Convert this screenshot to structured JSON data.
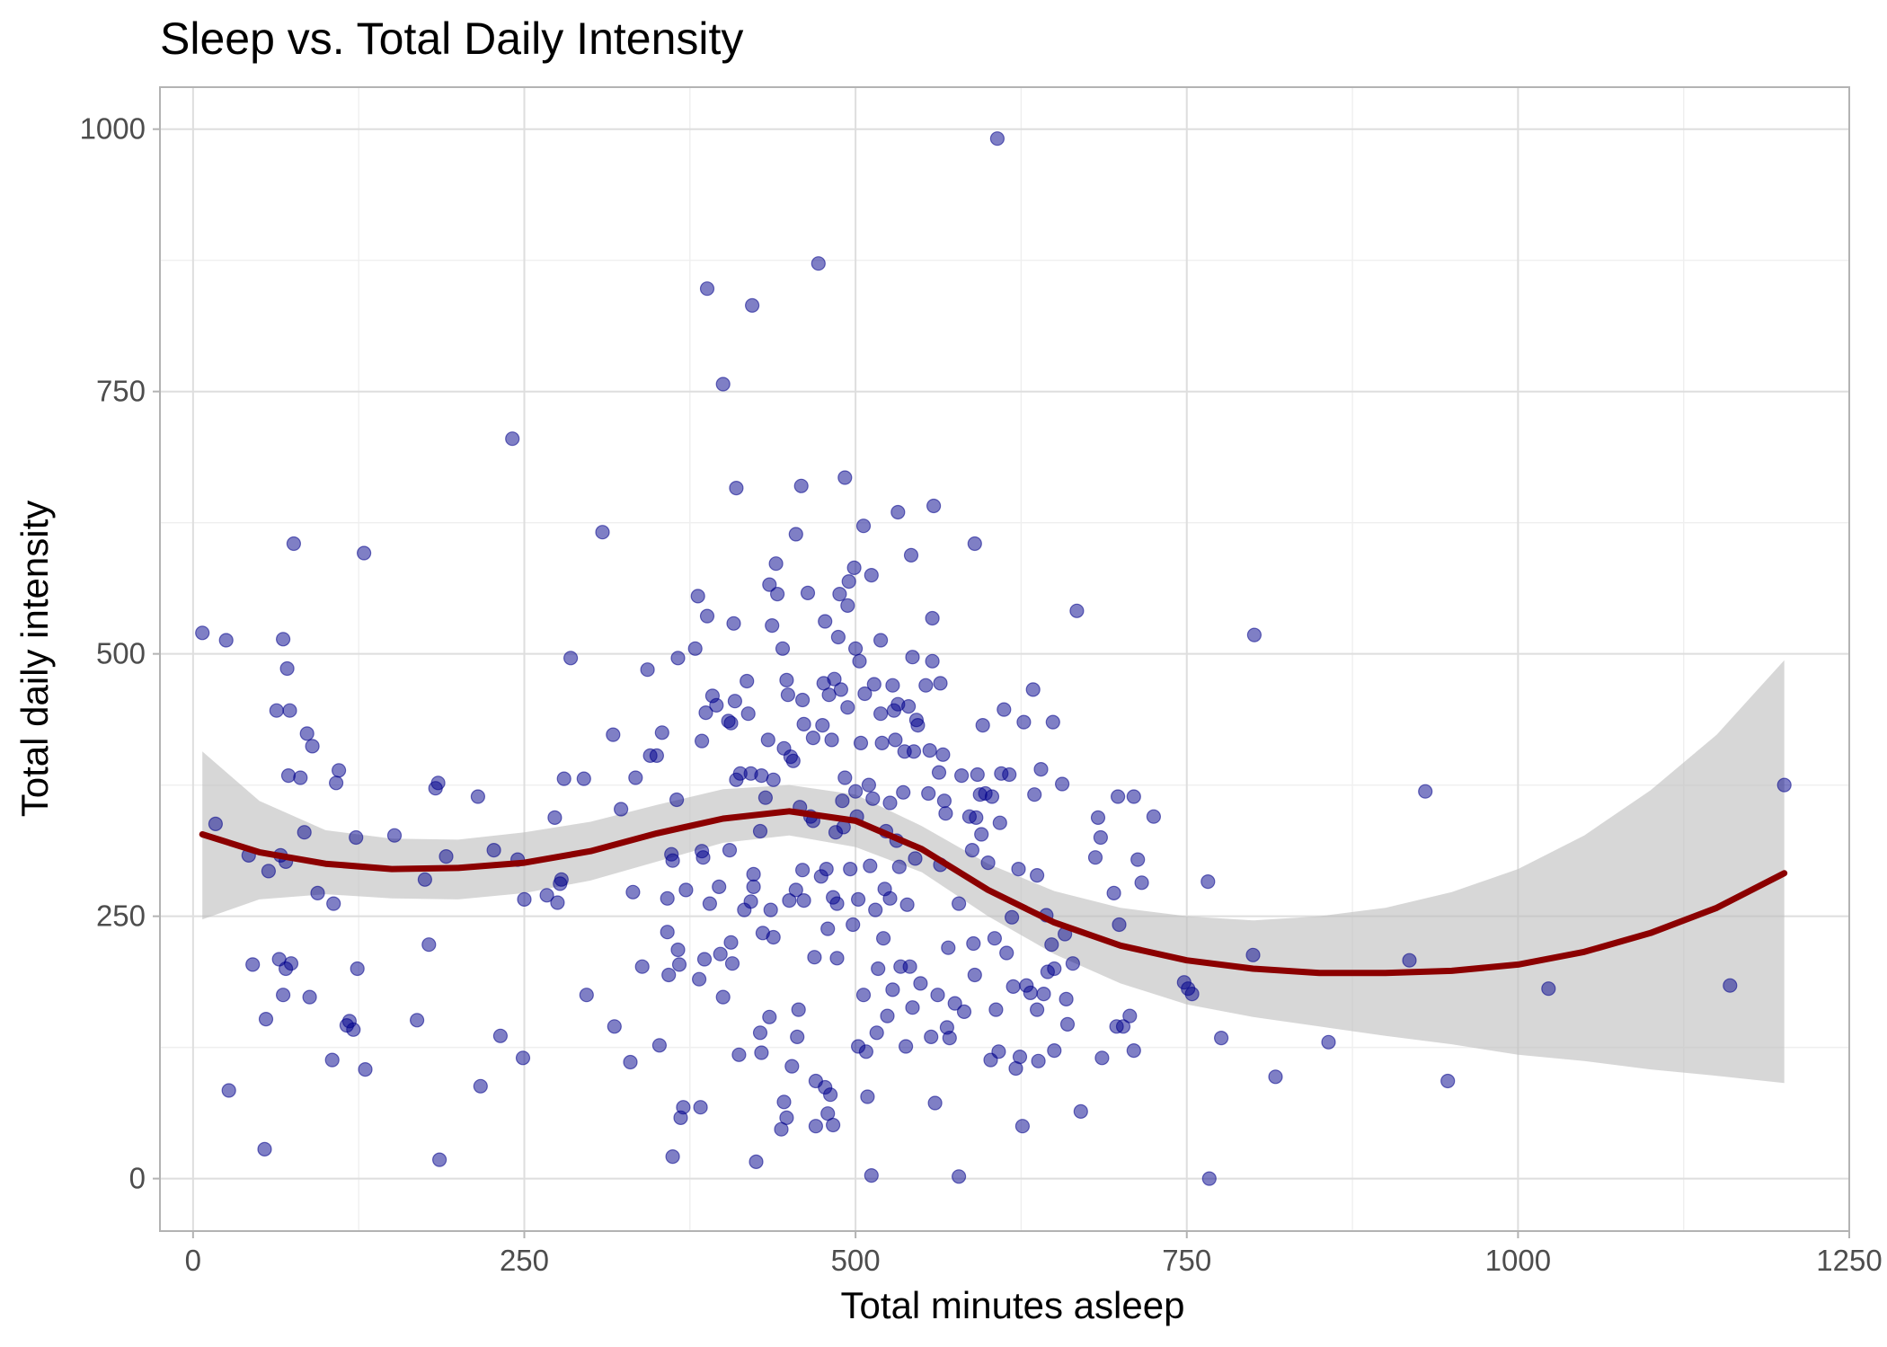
{
  "chart_data": {
    "type": "scatter",
    "title": "Sleep vs. Total Daily Intensity",
    "xlabel": "Total minutes asleep",
    "ylabel": "Total daily intensity",
    "xlim": [
      -25,
      1250
    ],
    "ylim": [
      -50,
      1040
    ],
    "x_ticks": [
      0,
      250,
      500,
      750,
      1000,
      1250
    ],
    "y_ticks": [
      0,
      250,
      500,
      750,
      1000
    ],
    "grid": true,
    "legend": "none",
    "colors": {
      "points": "#00008B",
      "smooth_line": "#8B0000",
      "confidence_band": "#bdbdbd"
    },
    "points": [
      [
        7,
        520
      ],
      [
        17,
        338
      ],
      [
        25,
        513
      ],
      [
        27,
        84
      ],
      [
        42,
        308
      ],
      [
        45,
        204
      ],
      [
        54,
        28
      ],
      [
        55,
        152
      ],
      [
        57,
        293
      ],
      [
        63,
        446
      ],
      [
        65,
        209
      ],
      [
        66,
        308
      ],
      [
        68,
        514
      ],
      [
        68,
        175
      ],
      [
        70,
        302
      ],
      [
        70,
        200
      ],
      [
        71,
        486
      ],
      [
        72,
        384
      ],
      [
        73,
        446
      ],
      [
        74,
        205
      ],
      [
        76,
        605
      ],
      [
        81,
        382
      ],
      [
        84,
        330
      ],
      [
        86,
        424
      ],
      [
        88,
        173
      ],
      [
        90,
        412
      ],
      [
        94,
        272
      ],
      [
        105,
        113
      ],
      [
        106,
        262
      ],
      [
        108,
        377
      ],
      [
        110,
        389
      ],
      [
        116,
        146
      ],
      [
        118,
        150
      ],
      [
        121,
        142
      ],
      [
        123,
        325
      ],
      [
        124,
        200
      ],
      [
        129,
        596
      ],
      [
        130,
        104
      ],
      [
        152,
        327
      ],
      [
        169,
        151
      ],
      [
        175,
        285
      ],
      [
        178,
        223
      ],
      [
        183,
        372
      ],
      [
        185,
        377
      ],
      [
        186,
        18
      ],
      [
        191,
        307
      ],
      [
        215,
        364
      ],
      [
        217,
        88
      ],
      [
        227,
        313
      ],
      [
        232,
        136
      ],
      [
        241,
        705
      ],
      [
        245,
        304
      ],
      [
        249,
        115
      ],
      [
        250,
        266
      ],
      [
        267,
        270
      ],
      [
        273,
        344
      ],
      [
        275,
        263
      ],
      [
        277,
        281
      ],
      [
        278,
        285
      ],
      [
        280,
        381
      ],
      [
        285,
        496
      ],
      [
        295,
        381
      ],
      [
        297,
        175
      ],
      [
        309,
        616
      ],
      [
        317,
        423
      ],
      [
        318,
        145
      ],
      [
        323,
        352
      ],
      [
        330,
        111
      ],
      [
        332,
        273
      ],
      [
        334,
        382
      ],
      [
        339,
        202
      ],
      [
        343,
        485
      ],
      [
        345,
        403
      ],
      [
        350,
        403
      ],
      [
        352,
        127
      ],
      [
        354,
        425
      ],
      [
        358,
        235
      ],
      [
        358,
        267
      ],
      [
        359,
        194
      ],
      [
        361,
        309
      ],
      [
        362,
        303
      ],
      [
        362,
        21
      ],
      [
        365,
        361
      ],
      [
        366,
        496
      ],
      [
        366,
        218
      ],
      [
        367,
        204
      ],
      [
        368,
        58
      ],
      [
        370,
        68
      ],
      [
        372,
        275
      ],
      [
        379,
        505
      ],
      [
        381,
        555
      ],
      [
        382,
        190
      ],
      [
        383,
        68
      ],
      [
        384,
        417
      ],
      [
        384,
        312
      ],
      [
        385,
        306
      ],
      [
        386,
        209
      ],
      [
        387,
        444
      ],
      [
        388,
        848
      ],
      [
        388,
        536
      ],
      [
        390,
        262
      ],
      [
        392,
        460
      ],
      [
        395,
        451
      ],
      [
        397,
        278
      ],
      [
        398,
        214
      ],
      [
        400,
        757
      ],
      [
        400,
        173
      ],
      [
        404,
        436
      ],
      [
        405,
        313
      ],
      [
        406,
        434
      ],
      [
        406,
        225
      ],
      [
        407,
        205
      ],
      [
        408,
        529
      ],
      [
        409,
        455
      ],
      [
        410,
        658
      ],
      [
        410,
        380
      ],
      [
        412,
        118
      ],
      [
        413,
        386
      ],
      [
        416,
        256
      ],
      [
        418,
        474
      ],
      [
        419,
        443
      ],
      [
        421,
        386
      ],
      [
        421,
        264
      ],
      [
        422,
        832
      ],
      [
        423,
        290
      ],
      [
        423,
        278
      ],
      [
        425,
        16
      ],
      [
        428,
        331
      ],
      [
        428,
        139
      ],
      [
        429,
        384
      ],
      [
        429,
        120
      ],
      [
        430,
        234
      ],
      [
        432,
        363
      ],
      [
        434,
        418
      ],
      [
        435,
        566
      ],
      [
        435,
        154
      ],
      [
        436,
        256
      ],
      [
        437,
        527
      ],
      [
        438,
        380
      ],
      [
        438,
        230
      ],
      [
        440,
        586
      ],
      [
        441,
        557
      ],
      [
        444,
        47
      ],
      [
        445,
        505
      ],
      [
        446,
        410
      ],
      [
        446,
        73
      ],
      [
        448,
        475
      ],
      [
        448,
        58
      ],
      [
        449,
        461
      ],
      [
        450,
        265
      ],
      [
        451,
        402
      ],
      [
        452,
        107
      ],
      [
        453,
        398
      ],
      [
        455,
        614
      ],
      [
        455,
        275
      ],
      [
        456,
        135
      ],
      [
        457,
        161
      ],
      [
        458,
        354
      ],
      [
        459,
        660
      ],
      [
        460,
        456
      ],
      [
        460,
        294
      ],
      [
        461,
        265
      ],
      [
        461,
        433
      ],
      [
        464,
        558
      ],
      [
        466,
        345
      ],
      [
        468,
        420
      ],
      [
        468,
        341
      ],
      [
        469,
        211
      ],
      [
        470,
        93
      ],
      [
        470,
        50
      ],
      [
        472,
        872
      ],
      [
        474,
        288
      ],
      [
        475,
        432
      ],
      [
        476,
        472
      ],
      [
        477,
        531
      ],
      [
        477,
        87
      ],
      [
        478,
        295
      ],
      [
        479,
        238
      ],
      [
        479,
        62
      ],
      [
        480,
        461
      ],
      [
        481,
        80
      ],
      [
        482,
        418
      ],
      [
        483,
        268
      ],
      [
        483,
        51
      ],
      [
        484,
        476
      ],
      [
        485,
        330
      ],
      [
        486,
        210
      ],
      [
        486,
        262
      ],
      [
        487,
        516
      ],
      [
        488,
        557
      ],
      [
        489,
        466
      ],
      [
        490,
        360
      ],
      [
        491,
        335
      ],
      [
        492,
        668
      ],
      [
        492,
        382
      ],
      [
        494,
        546
      ],
      [
        494,
        449
      ],
      [
        495,
        569
      ],
      [
        496,
        295
      ],
      [
        498,
        242
      ],
      [
        499,
        582
      ],
      [
        500,
        505
      ],
      [
        500,
        369
      ],
      [
        501,
        345
      ],
      [
        502,
        266
      ],
      [
        502,
        126
      ],
      [
        503,
        493
      ],
      [
        504,
        415
      ],
      [
        506,
        622
      ],
      [
        506,
        175
      ],
      [
        507,
        462
      ],
      [
        508,
        121
      ],
      [
        509,
        78
      ],
      [
        510,
        375
      ],
      [
        511,
        298
      ],
      [
        512,
        575
      ],
      [
        512,
        3
      ],
      [
        513,
        362
      ],
      [
        514,
        471
      ],
      [
        515,
        256
      ],
      [
        516,
        139
      ],
      [
        517,
        200
      ],
      [
        519,
        513
      ],
      [
        519,
        443
      ],
      [
        520,
        415
      ],
      [
        521,
        229
      ],
      [
        522,
        276
      ],
      [
        523,
        331
      ],
      [
        524,
        155
      ],
      [
        526,
        358
      ],
      [
        526,
        267
      ],
      [
        528,
        470
      ],
      [
        528,
        180
      ],
      [
        529,
        446
      ],
      [
        530,
        418
      ],
      [
        531,
        322
      ],
      [
        532,
        635
      ],
      [
        532,
        452
      ],
      [
        533,
        297
      ],
      [
        534,
        202
      ],
      [
        536,
        368
      ],
      [
        537,
        407
      ],
      [
        538,
        126
      ],
      [
        539,
        261
      ],
      [
        540,
        450
      ],
      [
        541,
        202
      ],
      [
        542,
        594
      ],
      [
        543,
        497
      ],
      [
        543,
        163
      ],
      [
        544,
        407
      ],
      [
        545,
        305
      ],
      [
        546,
        437
      ],
      [
        547,
        432
      ],
      [
        549,
        186
      ],
      [
        553,
        470
      ],
      [
        555,
        367
      ],
      [
        556,
        408
      ],
      [
        557,
        135
      ],
      [
        558,
        534
      ],
      [
        558,
        493
      ],
      [
        559,
        641
      ],
      [
        560,
        72
      ],
      [
        562,
        175
      ],
      [
        563,
        387
      ],
      [
        564,
        472
      ],
      [
        564,
        299
      ],
      [
        566,
        404
      ],
      [
        567,
        360
      ],
      [
        568,
        348
      ],
      [
        569,
        144
      ],
      [
        570,
        220
      ],
      [
        571,
        134
      ],
      [
        575,
        167
      ],
      [
        578,
        262
      ],
      [
        578,
        2
      ],
      [
        580,
        384
      ],
      [
        582,
        159
      ],
      [
        586,
        345
      ],
      [
        588,
        313
      ],
      [
        589,
        224
      ],
      [
        590,
        605
      ],
      [
        590,
        194
      ],
      [
        591,
        344
      ],
      [
        592,
        385
      ],
      [
        594,
        366
      ],
      [
        595,
        328
      ],
      [
        596,
        432
      ],
      [
        598,
        367
      ],
      [
        600,
        301
      ],
      [
        602,
        113
      ],
      [
        603,
        364
      ],
      [
        605,
        229
      ],
      [
        606,
        161
      ],
      [
        607,
        991
      ],
      [
        608,
        121
      ],
      [
        609,
        339
      ],
      [
        610,
        386
      ],
      [
        612,
        447
      ],
      [
        614,
        215
      ],
      [
        616,
        385
      ],
      [
        618,
        249
      ],
      [
        619,
        183
      ],
      [
        621,
        105
      ],
      [
        623,
        295
      ],
      [
        624,
        116
      ],
      [
        626,
        50
      ],
      [
        627,
        435
      ],
      [
        629,
        184
      ],
      [
        632,
        177
      ],
      [
        634,
        466
      ],
      [
        635,
        366
      ],
      [
        637,
        161
      ],
      [
        637,
        289
      ],
      [
        638,
        112
      ],
      [
        640,
        390
      ],
      [
        642,
        176
      ],
      [
        644,
        251
      ],
      [
        645,
        197
      ],
      [
        648,
        223
      ],
      [
        649,
        435
      ],
      [
        650,
        122
      ],
      [
        650,
        200
      ],
      [
        656,
        376
      ],
      [
        658,
        233
      ],
      [
        659,
        171
      ],
      [
        660,
        147
      ],
      [
        664,
        205
      ],
      [
        667,
        541
      ],
      [
        670,
        64
      ],
      [
        681,
        306
      ],
      [
        683,
        344
      ],
      [
        685,
        325
      ],
      [
        686,
        115
      ],
      [
        695,
        272
      ],
      [
        697,
        145
      ],
      [
        698,
        364
      ],
      [
        699,
        242
      ],
      [
        702,
        145
      ],
      [
        707,
        155
      ],
      [
        710,
        364
      ],
      [
        710,
        122
      ],
      [
        713,
        304
      ],
      [
        716,
        282
      ],
      [
        725,
        345
      ],
      [
        748,
        187
      ],
      [
        751,
        181
      ],
      [
        754,
        176
      ],
      [
        766,
        283
      ],
      [
        767,
        0
      ],
      [
        776,
        134
      ],
      [
        800,
        213
      ],
      [
        801,
        518
      ],
      [
        817,
        97
      ],
      [
        857,
        130
      ],
      [
        918,
        208
      ],
      [
        930,
        369
      ],
      [
        947,
        93
      ],
      [
        1023,
        181
      ],
      [
        1160,
        184
      ],
      [
        1201,
        375
      ]
    ],
    "smooth_line": [
      [
        7,
        328
      ],
      [
        50,
        311
      ],
      [
        100,
        300
      ],
      [
        150,
        295
      ],
      [
        200,
        296
      ],
      [
        250,
        301
      ],
      [
        300,
        312
      ],
      [
        350,
        329
      ],
      [
        400,
        343
      ],
      [
        450,
        350
      ],
      [
        500,
        341
      ],
      [
        550,
        314
      ],
      [
        600,
        275
      ],
      [
        650,
        244
      ],
      [
        700,
        222
      ],
      [
        750,
        208
      ],
      [
        800,
        200
      ],
      [
        850,
        196
      ],
      [
        900,
        196
      ],
      [
        950,
        198
      ],
      [
        1000,
        204
      ],
      [
        1050,
        216
      ],
      [
        1100,
        234
      ],
      [
        1150,
        258
      ],
      [
        1201,
        291
      ]
    ],
    "band_upper": [
      [
        7,
        407
      ],
      [
        50,
        360
      ],
      [
        100,
        332
      ],
      [
        150,
        324
      ],
      [
        200,
        323
      ],
      [
        250,
        330
      ],
      [
        300,
        340
      ],
      [
        350,
        356
      ],
      [
        400,
        371
      ],
      [
        450,
        375
      ],
      [
        500,
        366
      ],
      [
        550,
        336
      ],
      [
        600,
        300
      ],
      [
        650,
        274
      ],
      [
        700,
        258
      ],
      [
        750,
        250
      ],
      [
        800,
        246
      ],
      [
        850,
        250
      ],
      [
        900,
        258
      ],
      [
        950,
        273
      ],
      [
        1000,
        295
      ],
      [
        1050,
        327
      ],
      [
        1100,
        370
      ],
      [
        1150,
        423
      ],
      [
        1201,
        494
      ]
    ],
    "band_lower": [
      [
        7,
        247
      ],
      [
        50,
        266
      ],
      [
        100,
        271
      ],
      [
        150,
        267
      ],
      [
        200,
        266
      ],
      [
        250,
        272
      ],
      [
        300,
        284
      ],
      [
        350,
        302
      ],
      [
        400,
        320
      ],
      [
        450,
        327
      ],
      [
        500,
        316
      ],
      [
        550,
        292
      ],
      [
        600,
        250
      ],
      [
        650,
        214
      ],
      [
        700,
        186
      ],
      [
        750,
        166
      ],
      [
        800,
        154
      ],
      [
        850,
        145
      ],
      [
        900,
        136
      ],
      [
        950,
        128
      ],
      [
        1000,
        118
      ],
      [
        1050,
        112
      ],
      [
        1100,
        104
      ],
      [
        1150,
        98
      ],
      [
        1201,
        91
      ]
    ]
  }
}
